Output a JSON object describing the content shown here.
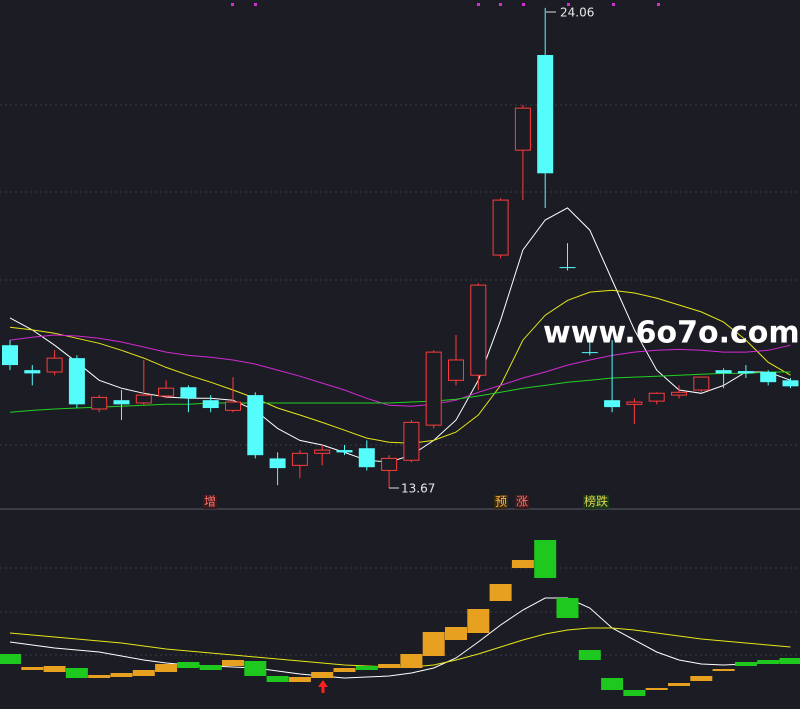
{
  "chart_data": [
    {
      "type": "candlestick",
      "open": [
        16.76,
        16.22,
        16.18,
        16.48,
        15.38,
        15.57,
        15.51,
        15.66,
        15.85,
        15.57,
        15.35,
        15.68,
        14.31,
        14.16,
        14.42,
        14.49,
        14.53,
        14.05,
        14.27,
        15.03,
        16.0,
        16.11,
        18.71,
        20.98,
        23.04,
        18.45,
        16.61,
        15.57,
        15.48,
        15.55,
        15.68,
        15.79,
        16.22,
        16.2,
        16.18,
        16.0
      ],
      "high": [
        16.87,
        16.33,
        16.65,
        16.54,
        15.68,
        15.79,
        16.44,
        16.0,
        15.89,
        15.68,
        16.07,
        15.74,
        14.44,
        14.49,
        14.6,
        14.6,
        14.7,
        14.38,
        15.14,
        16.65,
        16.98,
        18.1,
        19.94,
        21.96,
        24.06,
        18.97,
        16.87,
        16.87,
        15.61,
        15.74,
        15.89,
        16.07,
        16.26,
        16.33,
        16.22,
        16.05
      ],
      "low": [
        16.22,
        15.89,
        16.11,
        15.4,
        15.31,
        15.14,
        15.46,
        15.61,
        15.31,
        15.31,
        15.31,
        14.31,
        13.73,
        13.88,
        14.16,
        14.38,
        14.05,
        13.67,
        14.23,
        14.96,
        15.89,
        15.79,
        18.64,
        19.9,
        19.73,
        18.38,
        16.54,
        15.31,
        15.05,
        15.48,
        15.61,
        15.74,
        15.83,
        16.05,
        15.89,
        15.83
      ],
      "close": [
        16.33,
        16.15,
        16.48,
        15.48,
        15.63,
        15.48,
        15.68,
        15.83,
        15.61,
        15.4,
        15.53,
        14.38,
        14.1,
        14.42,
        14.49,
        14.44,
        14.12,
        14.31,
        15.09,
        16.61,
        16.44,
        18.06,
        19.9,
        21.89,
        20.48,
        18.43,
        16.59,
        15.42,
        15.53,
        15.72,
        15.74,
        16.07,
        16.15,
        16.15,
        15.96,
        15.87
      ],
      "up_color": "#ff3b3b",
      "down_color": "#54fcfc",
      "hollow_up": true,
      "ylim": [
        13.41,
        24.23
      ],
      "series": [
        {
          "color": "#ffffff",
          "values": [
            17.35,
            17.09,
            16.76,
            16.39,
            16.0,
            15.83,
            15.72,
            15.64,
            15.61,
            15.61,
            15.57,
            15.35,
            14.96,
            14.7,
            14.6,
            14.44,
            14.27,
            14.23,
            14.38,
            14.7,
            15.14,
            16.0,
            17.3,
            18.82,
            19.47,
            19.73,
            19.25,
            18.17,
            17.09,
            16.22,
            15.79,
            15.72,
            15.89,
            16.18,
            16.18,
            16.0
          ]
        },
        {
          "color": "#e6e619",
          "values": [
            17.15,
            17.09,
            17.02,
            16.91,
            16.8,
            16.65,
            16.48,
            16.28,
            16.11,
            15.96,
            15.79,
            15.61,
            15.4,
            15.25,
            15.09,
            14.92,
            14.75,
            14.66,
            14.64,
            14.7,
            14.88,
            15.25,
            15.89,
            16.87,
            17.41,
            17.73,
            17.91,
            17.95,
            17.89,
            17.78,
            17.63,
            17.48,
            17.26,
            16.87,
            16.39,
            16.11
          ]
        },
        {
          "color": "#d22ad2",
          "values": [
            16.87,
            16.93,
            16.98,
            16.96,
            16.91,
            16.83,
            16.72,
            16.61,
            16.54,
            16.5,
            16.44,
            16.35,
            16.22,
            16.09,
            15.94,
            15.79,
            15.61,
            15.46,
            15.44,
            15.48,
            15.57,
            15.74,
            15.89,
            16.05,
            16.18,
            16.33,
            16.44,
            16.54,
            16.61,
            16.65,
            16.67,
            16.65,
            16.61,
            16.61,
            16.65,
            16.76
          ]
        },
        {
          "color": "#22d022",
          "values": [
            15.31,
            15.35,
            15.38,
            15.4,
            15.42,
            15.44,
            15.46,
            15.48,
            15.48,
            15.51,
            15.51,
            15.51,
            15.51,
            15.51,
            15.51,
            15.51,
            15.51,
            15.51,
            15.53,
            15.55,
            15.59,
            15.66,
            15.74,
            15.83,
            15.89,
            15.96,
            16.0,
            16.05,
            16.07,
            16.09,
            16.11,
            16.13,
            16.15,
            16.15,
            16.18,
            16.18
          ]
        }
      ],
      "annotations": [
        "24.06",
        "13.67"
      ],
      "signals": [
        "增",
        "预",
        "涨",
        "榜跌"
      ]
    },
    {
      "type": "candlestick",
      "open": [
        27.5,
        19.5,
        18.5,
        20.5,
        15.5,
        16,
        16.5,
        18.5,
        23.5,
        22,
        21.5,
        24,
        16.5,
        13.5,
        15.5,
        18.5,
        21.5,
        20.5,
        20.5,
        26.5,
        34.5,
        38,
        54,
        70.5,
        84.5,
        55.5,
        29.5,
        15.5,
        9.5,
        9.5,
        11.5,
        14,
        19,
        23.5,
        24.5,
        25.5
      ],
      "close": [
        22.5,
        21,
        21.5,
        15.5,
        17,
        18,
        19.5,
        22.5,
        20.5,
        19.5,
        24.5,
        16.5,
        13.5,
        16,
        18.5,
        20.5,
        19.5,
        22.5,
        27.5,
        38.5,
        41,
        50,
        62.5,
        74.5,
        65.5,
        45.5,
        24.5,
        9.5,
        6.5,
        10.5,
        13,
        16.5,
        20,
        21.5,
        22.5,
        22.5
      ],
      "up_color": "#e8a020",
      "down_color": "#1ec81e",
      "hollow_up": false,
      "ylim": [
        0,
        100
      ],
      "series": [
        {
          "color": "#ffffff",
          "values": [
            33.5,
            32,
            30.5,
            29.5,
            28.5,
            26.5,
            24.5,
            23,
            22,
            21.5,
            21,
            20.5,
            19,
            17.5,
            16.5,
            15.5,
            16,
            16.5,
            18,
            20.5,
            25.5,
            33.5,
            42,
            49.5,
            55.5,
            55.5,
            50.5,
            40.5,
            34.5,
            28.5,
            24.5,
            22.5,
            22,
            22.5,
            23.5,
            24.5
          ]
        },
        {
          "color": "#e6e619",
          "values": [
            38,
            37,
            36,
            35,
            34,
            33,
            31.5,
            30,
            29,
            28,
            27,
            26,
            25,
            24,
            23,
            22,
            21.5,
            21,
            21,
            22,
            24.5,
            27.5,
            31,
            34.5,
            37.5,
            39.5,
            40.5,
            40.5,
            39.5,
            38,
            36.5,
            35,
            34,
            33,
            32,
            31
          ]
        }
      ]
    }
  ],
  "watermark": "www.6o7o.com"
}
